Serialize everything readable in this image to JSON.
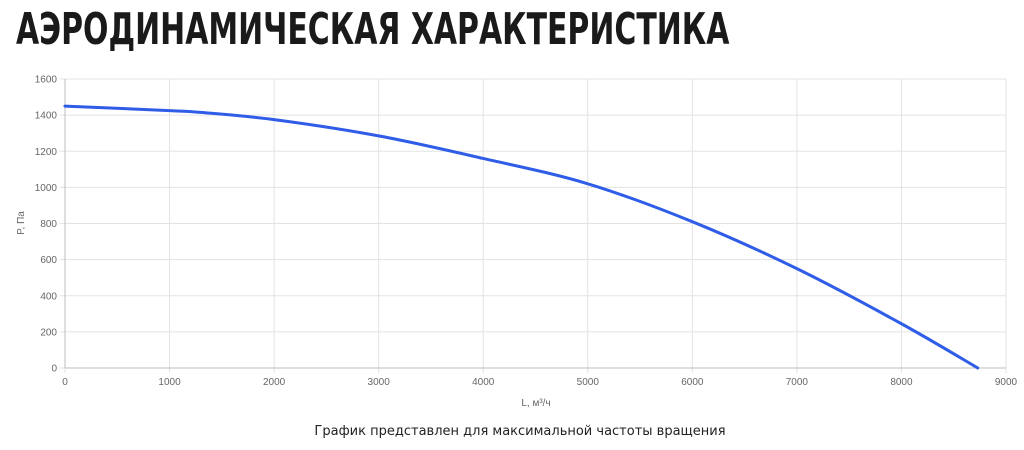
{
  "page": {
    "title": "АЭРОДИНАМИЧЕСКАЯ ХАРАКТЕРИСТИКА",
    "footnote": "График представлен для максимальной частоты вращения"
  },
  "chart_data": {
    "type": "line",
    "xlabel": "L, м³/ч",
    "ylabel": "P, Па",
    "xlim": [
      0,
      9000
    ],
    "ylim": [
      0,
      1600
    ],
    "x_ticks": [
      0,
      1000,
      2000,
      3000,
      4000,
      5000,
      6000,
      7000,
      8000,
      9000
    ],
    "y_ticks": [
      0,
      200,
      400,
      600,
      800,
      1000,
      1200,
      1400,
      1600
    ],
    "grid": true,
    "line_color": "#2f5de8",
    "series": [
      {
        "x": [
          0,
          1000,
          1300,
          2000,
          3000,
          4000,
          5000,
          6000,
          7000,
          8000,
          8730
        ],
        "y": [
          1450,
          1425,
          1415,
          1375,
          1285,
          1160,
          1020,
          810,
          550,
          245,
          0
        ]
      }
    ]
  }
}
